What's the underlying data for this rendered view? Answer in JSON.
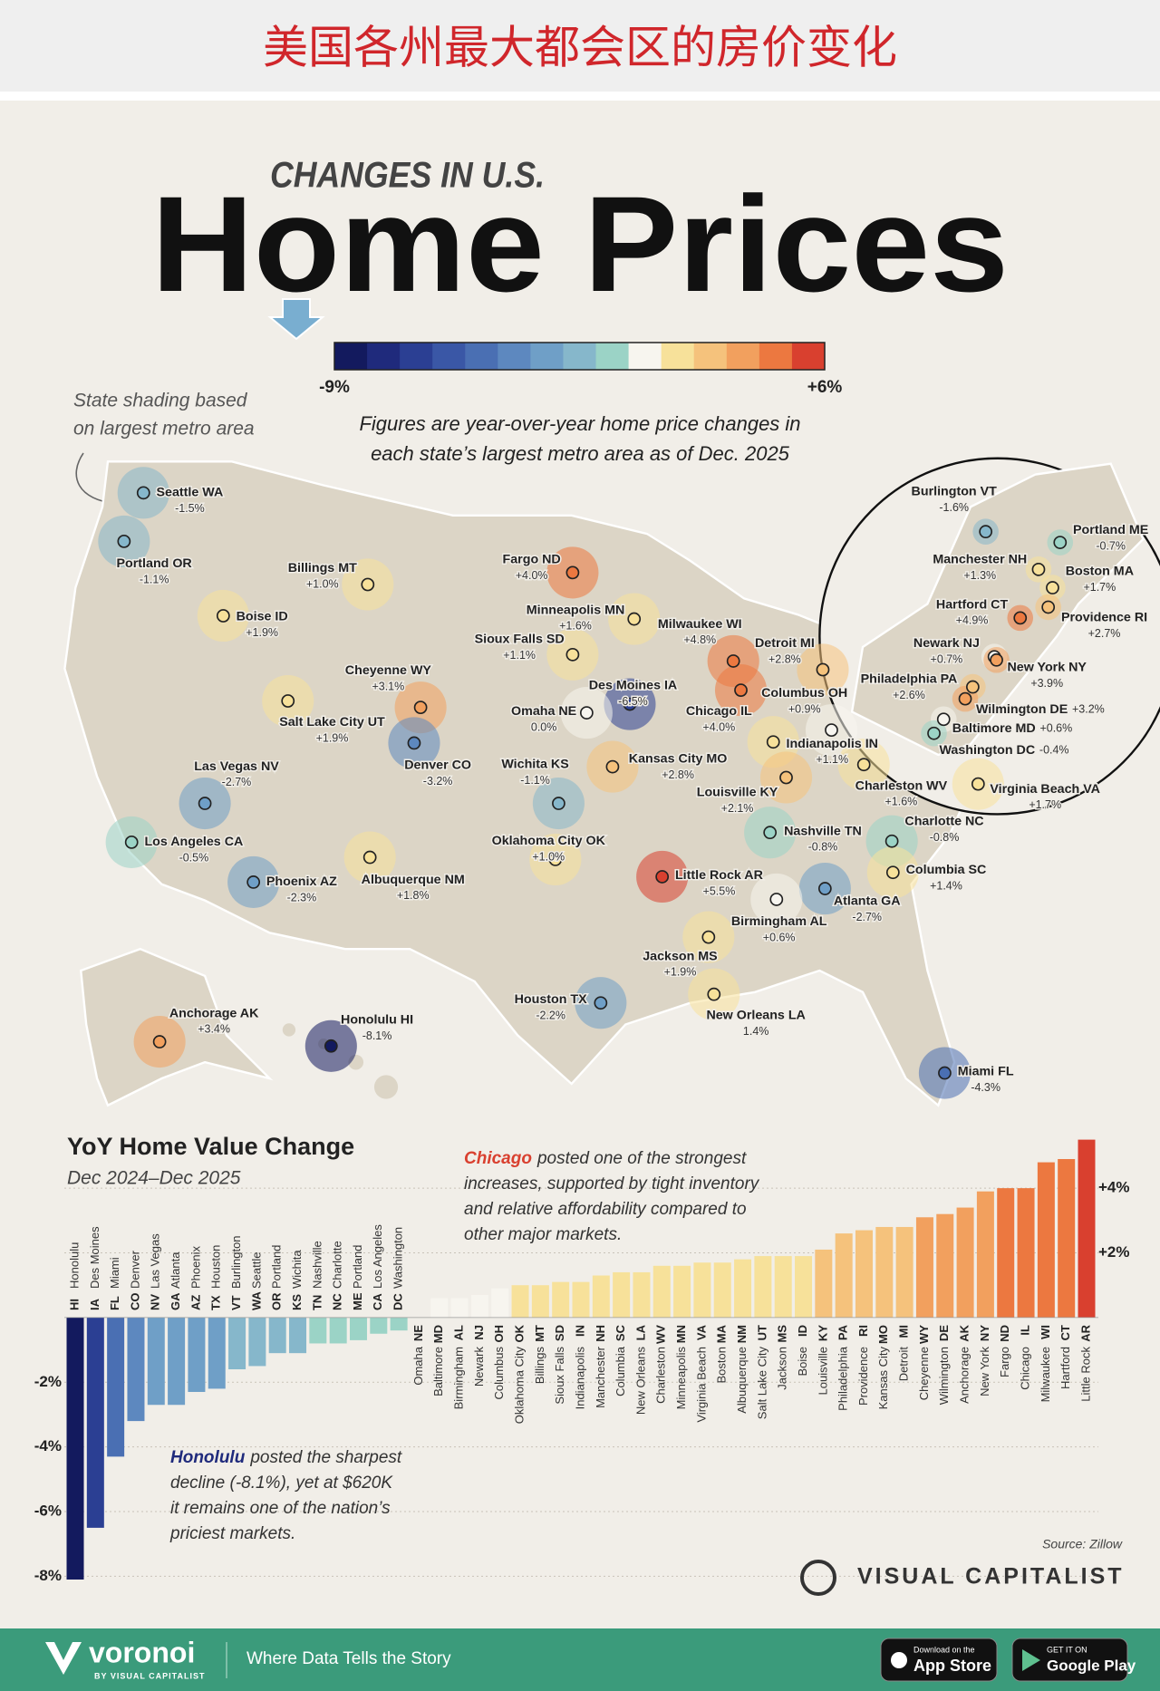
{
  "header": {
    "title": "美国各州最大都会区的房价变化"
  },
  "infographic": {
    "kicker": "CHANGES IN U.S.",
    "title": "Home Prices",
    "map_note_lines": [
      "State shading based",
      "on largest metro area"
    ],
    "intro_lines": [
      "Figures are year-over-year home price changes in",
      "each state’s largest metro area as of Dec. 2025"
    ]
  },
  "color_scale": {
    "colors": [
      "#131a5e",
      "#1f2a7c",
      "#2b3f93",
      "#3a57a6",
      "#4a6fb3",
      "#5d88bf",
      "#6f9fc7",
      "#86b7cb",
      "#9bd3c6",
      "#f7f5ef",
      "#f7e19a",
      "#f5c27c",
      "#f2a05e",
      "#ec7840",
      "#d9402f"
    ],
    "min": {
      "value": -9,
      "label": "-9%"
    },
    "max": {
      "value": 6,
      "label": "+6%"
    }
  },
  "map": {
    "cities": [
      {
        "name": "Seattle WA",
        "value": -1.5,
        "value_label": "-1.5%"
      },
      {
        "name": "Portland OR",
        "value": -1.1,
        "value_label": "-1.1%"
      },
      {
        "name": "Billings MT",
        "value": 1.0,
        "value_label": "+1.0%"
      },
      {
        "name": "Boise ID",
        "value": 1.9,
        "value_label": "+1.9%"
      },
      {
        "name": "Fargo ND",
        "value": 4.0,
        "value_label": "+4.0%"
      },
      {
        "name": "Minneapolis MN",
        "value": 1.6,
        "value_label": "+1.6%"
      },
      {
        "name": "Sioux Falls SD",
        "value": 1.1,
        "value_label": "+1.1%"
      },
      {
        "name": "Milwaukee WI",
        "value": 4.8,
        "value_label": "+4.8%"
      },
      {
        "name": "Detroit MI",
        "value": 2.8,
        "value_label": "+2.8%"
      },
      {
        "name": "Cheyenne WY",
        "value": 3.1,
        "value_label": "+3.1%"
      },
      {
        "name": "Des Moines IA",
        "value": -6.5,
        "value_label": "-6.5%"
      },
      {
        "name": "Chicago IL",
        "value": 4.0,
        "value_label": "+4.0%"
      },
      {
        "name": "Omaha NE",
        "value": 0.0,
        "value_label": "0.0%"
      },
      {
        "name": "Columbus OH",
        "value": 0.9,
        "value_label": "+0.9%"
      },
      {
        "name": "Salt Lake City UT",
        "value": 1.9,
        "value_label": "+1.9%"
      },
      {
        "name": "Denver CO",
        "value": -3.2,
        "value_label": "-3.2%"
      },
      {
        "name": "Indianapolis IN",
        "value": 1.1,
        "value_label": "+1.1%"
      },
      {
        "name": "Kansas City MO",
        "value": 2.8,
        "value_label": "+2.8%"
      },
      {
        "name": "Wichita KS",
        "value": -1.1,
        "value_label": "-1.1%"
      },
      {
        "name": "Louisville KY",
        "value": 2.1,
        "value_label": "+2.1%"
      },
      {
        "name": "Charleston WV",
        "value": 1.6,
        "value_label": "+1.6%"
      },
      {
        "name": "Virginia Beach VA",
        "value": 1.7,
        "value_label": "+1.7%"
      },
      {
        "name": "Las Vegas NV",
        "value": -2.7,
        "value_label": "-2.7%"
      },
      {
        "name": "Los Angeles CA",
        "value": -0.5,
        "value_label": "-0.5%"
      },
      {
        "name": "Nashville TN",
        "value": -0.8,
        "value_label": "-0.8%"
      },
      {
        "name": "Charlotte NC",
        "value": -0.8,
        "value_label": "-0.8%"
      },
      {
        "name": "Oklahoma City OK",
        "value": 1.0,
        "value_label": "+1.0%"
      },
      {
        "name": "Albuquerque NM",
        "value": 1.8,
        "value_label": "+1.8%"
      },
      {
        "name": "Phoenix AZ",
        "value": -2.3,
        "value_label": "-2.3%"
      },
      {
        "name": "Little Rock AR",
        "value": 5.5,
        "value_label": "+5.5%"
      },
      {
        "name": "Columbia SC",
        "value": 1.4,
        "value_label": "+1.4%"
      },
      {
        "name": "Atlanta GA",
        "value": -2.7,
        "value_label": "-2.7%"
      },
      {
        "name": "Birmingham AL",
        "value": 0.6,
        "value_label": "+0.6%"
      },
      {
        "name": "Jackson MS",
        "value": 1.9,
        "value_label": "+1.9%"
      },
      {
        "name": "Houston TX",
        "value": -2.2,
        "value_label": "-2.2%"
      },
      {
        "name": "New Orleans LA",
        "value": 1.4,
        "value_label": "1.4%"
      },
      {
        "name": "Anchorage AK",
        "value": 3.4,
        "value_label": "+3.4%"
      },
      {
        "name": "Honolulu HI",
        "value": -8.1,
        "value_label": "-8.1%"
      },
      {
        "name": "Miami FL",
        "value": -4.3,
        "value_label": "-4.3%"
      },
      {
        "name": "Burlington VT",
        "value": -1.6,
        "value_label": "-1.6%"
      },
      {
        "name": "Portland ME",
        "value": -0.7,
        "value_label": "-0.7%"
      },
      {
        "name": "Manchester NH",
        "value": 1.3,
        "value_label": "+1.3%"
      },
      {
        "name": "Boston MA",
        "value": 1.7,
        "value_label": "+1.7%"
      },
      {
        "name": "Hartford CT",
        "value": 4.9,
        "value_label": "+4.9%"
      },
      {
        "name": "Providence RI",
        "value": 2.7,
        "value_label": "+2.7%"
      },
      {
        "name": "Newark NJ",
        "value": 0.7,
        "value_label": "+0.7%"
      },
      {
        "name": "New York NY",
        "value": 3.9,
        "value_label": "+3.9%"
      },
      {
        "name": "Philadelphia PA",
        "value": 2.6,
        "value_label": "+2.6%"
      },
      {
        "name": "Wilmington DE",
        "value": 3.2,
        "value_label": "+3.2%"
      },
      {
        "name": "Baltimore MD",
        "value": 0.6,
        "value_label": "+0.6%"
      },
      {
        "name": "Washington DC",
        "value": -0.4,
        "value_label": "-0.4%"
      }
    ]
  },
  "chart_data": {
    "type": "bar",
    "title": "YoY Home Value Change",
    "subtitle": "Dec 2024–Dec 2025",
    "categories": [
      "Honolulu",
      "Des Moines",
      "Miami",
      "Denver",
      "Las Vegas",
      "Atlanta",
      "Phoenix",
      "Houston",
      "Burlington",
      "Seattle",
      "Portland",
      "Wichita",
      "Nashville",
      "Charlotte",
      "Portland",
      "Los Angeles",
      "Washington",
      "Omaha",
      "Baltimore",
      "Birmingham",
      "Newark",
      "Columbus",
      "Oklahoma City",
      "Billings",
      "Sioux Falls",
      "Indianapolis",
      "Manchester",
      "Columbia",
      "New Orleans",
      "Charleston",
      "Minneapolis",
      "Virginia Beach",
      "Boston",
      "Albuquerque",
      "Salt Lake City",
      "Jackson",
      "Boise",
      "Louisville",
      "Philadelphia",
      "Providence",
      "Kansas City",
      "Detroit",
      "Cheyenne",
      "Wilmington",
      "Anchorage",
      "New York",
      "Fargo",
      "Chicago",
      "Milwaukee",
      "Hartford",
      "Little Rock"
    ],
    "states": [
      "HI",
      "IA",
      "FL",
      "CO",
      "NV",
      "GA",
      "AZ",
      "TX",
      "VT",
      "WA",
      "OR",
      "KS",
      "TN",
      "NC",
      "ME",
      "CA",
      "DC",
      "NE",
      "MD",
      "AL",
      "NJ",
      "OH",
      "OK",
      "MT",
      "SD",
      "IN",
      "NH",
      "SC",
      "LA",
      "WV",
      "MN",
      "VA",
      "MA",
      "NM",
      "UT",
      "MS",
      "ID",
      "KY",
      "PA",
      "RI",
      "MO",
      "MI",
      "WY",
      "DE",
      "AK",
      "NY",
      "ND",
      "IL",
      "WI",
      "CT",
      "AR"
    ],
    "values": [
      -8.1,
      -6.5,
      -4.3,
      -3.2,
      -2.7,
      -2.7,
      -2.3,
      -2.2,
      -1.6,
      -1.5,
      -1.1,
      -1.1,
      -0.8,
      -0.8,
      -0.7,
      -0.5,
      -0.4,
      0.0,
      0.6,
      0.6,
      0.7,
      0.9,
      1.0,
      1.0,
      1.1,
      1.1,
      1.3,
      1.4,
      1.4,
      1.6,
      1.6,
      1.7,
      1.7,
      1.8,
      1.9,
      1.9,
      1.9,
      2.1,
      2.6,
      2.7,
      2.8,
      2.8,
      3.1,
      3.2,
      3.4,
      3.9,
      4.0,
      4.0,
      4.8,
      4.9,
      5.5
    ],
    "ylim": [
      -8.1,
      5.5
    ],
    "yticks": [
      {
        "value": -8,
        "label": "-8%"
      },
      {
        "value": -6,
        "label": "-6%"
      },
      {
        "value": -4,
        "label": "-4%"
      },
      {
        "value": -2,
        "label": "-2%"
      },
      {
        "value": 2,
        "label": "+2%"
      },
      {
        "value": 4,
        "label": "+4%"
      }
    ],
    "grid": true,
    "annotations": [
      {
        "highlight": "Chicago",
        "color": "#d9402f",
        "lines": [
          "posted one of the strongest",
          "increases, supported by tight inventory",
          "and relative affordability compared to",
          "other major markets."
        ]
      },
      {
        "highlight": "Honolulu",
        "color": "#1f2a7c",
        "lines": [
          "posted the sharpest",
          "decline (-8.1%), yet at $620K",
          "it remains one of the nation’s",
          "priciest markets."
        ]
      }
    ],
    "source": "Source: Zillow"
  },
  "branding": {
    "name": "VISUAL CAPITALIST"
  },
  "footer": {
    "brand": "voronoi",
    "byline": "BY VISUAL CAPITALIST",
    "tagline": "Where Data Tells the Story",
    "app_store_small": "Download on the",
    "app_store": "App Store",
    "google_play_small": "GET IT ON",
    "google_play": "Google Play"
  }
}
